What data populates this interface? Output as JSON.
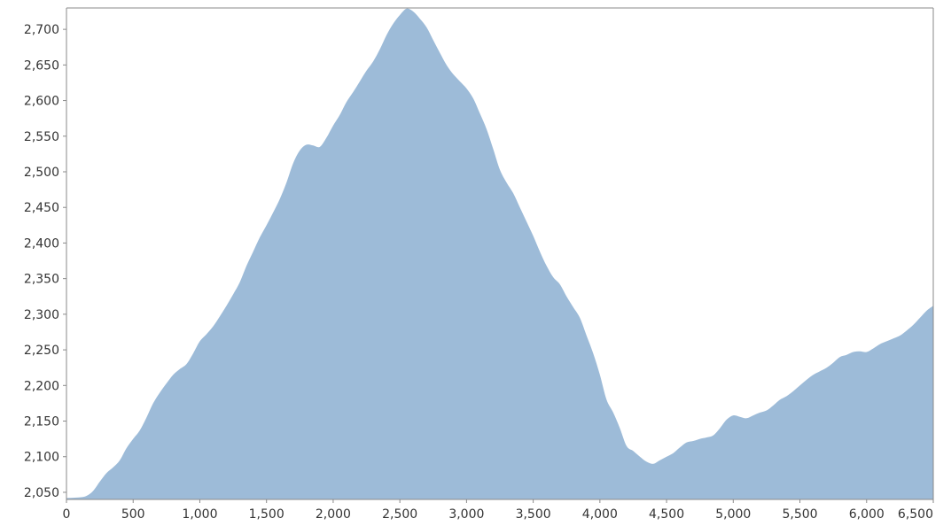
{
  "chart_data": {
    "type": "area",
    "title": "",
    "xlabel": "",
    "ylabel": "",
    "xlim": [
      0,
      6500
    ],
    "ylim": [
      2040,
      2730
    ],
    "x_ticks": [
      0,
      500,
      1000,
      1500,
      2000,
      2500,
      3000,
      3500,
      4000,
      4500,
      5000,
      5500,
      6000,
      6500
    ],
    "x_tick_labels": [
      "0",
      "500",
      "1,000",
      "1,500",
      "2,000",
      "2,500",
      "3,000",
      "3,500",
      "4,000",
      "4,500",
      "5,000",
      "5,500",
      "6,000",
      "6,500"
    ],
    "y_ticks": [
      2050,
      2100,
      2150,
      2200,
      2250,
      2300,
      2350,
      2400,
      2450,
      2500,
      2550,
      2600,
      2650,
      2700
    ],
    "y_tick_labels": [
      "2,050",
      "2,100",
      "2,150",
      "2,200",
      "2,250",
      "2,300",
      "2,350",
      "2,400",
      "2,450",
      "2,500",
      "2,550",
      "2,600",
      "2,650",
      "2,700"
    ],
    "grid": false,
    "colors": {
      "fill": "#9dbbd8",
      "axis": "#8a8a8a",
      "text": "#333333"
    },
    "series": [
      {
        "x": [
          0,
          100,
          150,
          200,
          250,
          300,
          350,
          400,
          450,
          500,
          550,
          600,
          650,
          700,
          750,
          800,
          850,
          900,
          950,
          1000,
          1050,
          1100,
          1150,
          1200,
          1250,
          1300,
          1350,
          1400,
          1450,
          1500,
          1550,
          1600,
          1650,
          1700,
          1750,
          1800,
          1850,
          1900,
          1950,
          2000,
          2050,
          2100,
          2150,
          2200,
          2250,
          2300,
          2350,
          2400,
          2450,
          2500,
          2550,
          2600,
          2650,
          2700,
          2750,
          2800,
          2850,
          2900,
          2950,
          3000,
          3050,
          3100,
          3150,
          3200,
          3250,
          3300,
          3350,
          3400,
          3450,
          3500,
          3550,
          3600,
          3650,
          3700,
          3750,
          3800,
          3850,
          3900,
          3950,
          4000,
          4050,
          4100,
          4150,
          4200,
          4250,
          4300,
          4350,
          4400,
          4450,
          4500,
          4550,
          4600,
          4650,
          4700,
          4750,
          4800,
          4850,
          4900,
          4950,
          5000,
          5050,
          5100,
          5150,
          5200,
          5250,
          5300,
          5350,
          5400,
          5450,
          5500,
          5550,
          5600,
          5650,
          5700,
          5750,
          5800,
          5850,
          5900,
          5950,
          6000,
          6050,
          6100,
          6150,
          6200,
          6250,
          6300,
          6350,
          6400,
          6450,
          6500
        ],
        "y": [
          2042,
          2043,
          2045,
          2052,
          2065,
          2077,
          2085,
          2095,
          2112,
          2125,
          2137,
          2155,
          2175,
          2190,
          2203,
          2215,
          2223,
          2230,
          2245,
          2262,
          2272,
          2283,
          2297,
          2312,
          2328,
          2345,
          2368,
          2388,
          2408,
          2425,
          2443,
          2462,
          2485,
          2512,
          2530,
          2538,
          2537,
          2535,
          2548,
          2565,
          2580,
          2598,
          2612,
          2627,
          2642,
          2655,
          2672,
          2692,
          2708,
          2720,
          2729,
          2725,
          2715,
          2703,
          2685,
          2667,
          2650,
          2637,
          2627,
          2617,
          2603,
          2582,
          2560,
          2532,
          2503,
          2485,
          2470,
          2450,
          2430,
          2410,
          2388,
          2368,
          2352,
          2342,
          2325,
          2310,
          2295,
          2270,
          2245,
          2215,
          2180,
          2162,
          2140,
          2115,
          2108,
          2100,
          2093,
          2090,
          2095,
          2100,
          2105,
          2113,
          2120,
          2122,
          2125,
          2127,
          2130,
          2140,
          2152,
          2158,
          2156,
          2154,
          2158,
          2162,
          2165,
          2172,
          2180,
          2185,
          2192,
          2200,
          2208,
          2215,
          2220,
          2225,
          2232,
          2240,
          2243,
          2247,
          2248,
          2247,
          2252,
          2258,
          2262,
          2266,
          2270,
          2277,
          2285,
          2295,
          2305,
          2312
        ]
      }
    ]
  }
}
